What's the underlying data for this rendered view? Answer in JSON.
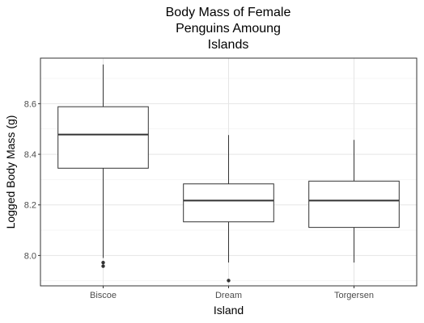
{
  "chart_data": {
    "type": "boxplot",
    "title_lines": [
      "Body Mass of Female",
      "Penguins Amoung",
      "Islands"
    ],
    "xlabel": "Island",
    "ylabel": "Logged Body Mass (g)",
    "ylim": [
      7.88,
      8.78
    ],
    "yticks": [
      8.0,
      8.2,
      8.4,
      8.6
    ],
    "ytick_labels": [
      "8.0",
      "8.2",
      "8.4",
      "8.6"
    ],
    "grid": true,
    "categories": [
      "Biscoe",
      "Dream",
      "Torgersen"
    ],
    "boxes": [
      {
        "name": "Biscoe",
        "whisker_low": 7.99,
        "q1": 8.345,
        "median": 8.478,
        "q3": 8.588,
        "whisker_high": 8.755,
        "outliers": [
          7.972,
          7.958
        ]
      },
      {
        "name": "Dream",
        "whisker_low": 7.972,
        "q1": 8.133,
        "median": 8.217,
        "q3": 8.283,
        "whisker_high": 8.476,
        "outliers": [
          7.901
        ]
      },
      {
        "name": "Torgersen",
        "whisker_low": 7.972,
        "q1": 8.111,
        "median": 8.217,
        "q3": 8.294,
        "whisker_high": 8.457,
        "outliers": []
      }
    ]
  }
}
